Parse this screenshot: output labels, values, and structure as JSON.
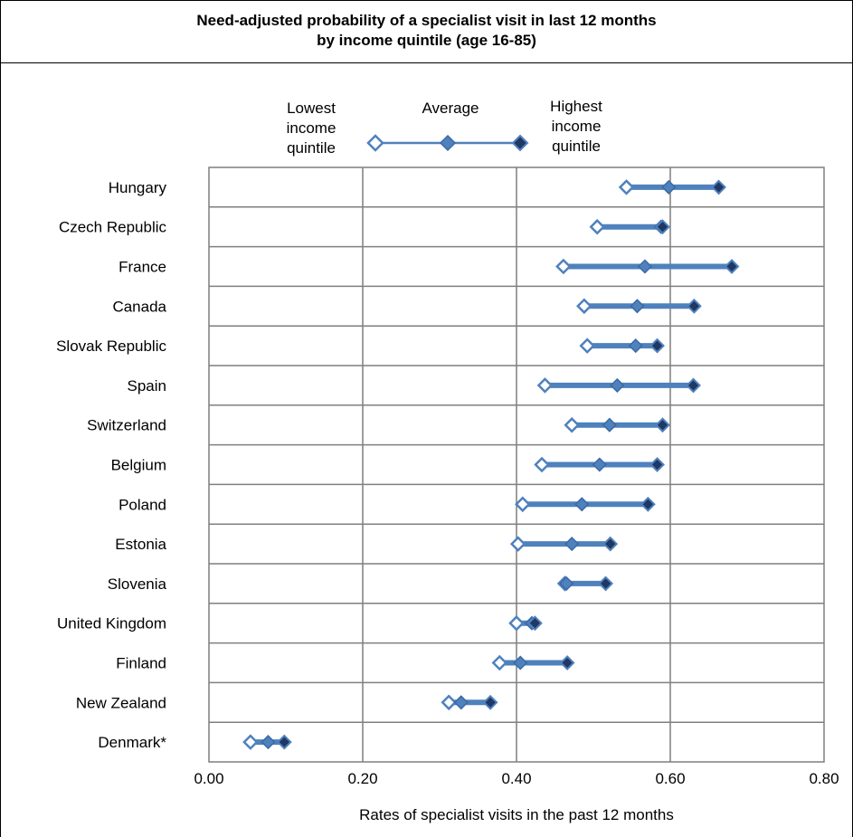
{
  "chart_data": {
    "type": "dumbbell",
    "title": "Need-adjusted probability of a specialist visit in last 12 months",
    "subtitle": "by income quintile (age 16-85)",
    "xlabel": "Rates of specialist visits in the past 12 months",
    "xlim": [
      0,
      0.8
    ],
    "xticks": [
      "0.00",
      "0.20",
      "0.40",
      "0.60",
      "0.80"
    ],
    "grid": true,
    "legend": {
      "placement": "top",
      "lowest_lines": [
        "Lowest",
        "income",
        "quintile"
      ],
      "average": "Average",
      "highest_lines": [
        "Highest",
        "income",
        "quintile"
      ]
    },
    "series_names": [
      "Lowest income quintile",
      "Average",
      "Highest income quintile"
    ],
    "categories": [
      "Hungary",
      "Czech Republic",
      "France",
      "Canada",
      "Slovak Republic",
      "Spain",
      "Switzerland",
      "Belgium",
      "Poland",
      "Estonia",
      "Slovenia",
      "United Kingdom",
      "Finland",
      "New Zealand",
      "Denmark*"
    ],
    "lowest": [
      0.543,
      0.505,
      0.461,
      0.488,
      0.492,
      0.437,
      0.472,
      0.433,
      0.408,
      0.402,
      0.463,
      0.4,
      0.378,
      0.312,
      0.054
    ],
    "average": [
      0.598,
      0.588,
      0.567,
      0.557,
      0.555,
      0.531,
      0.521,
      0.508,
      0.485,
      0.472,
      0.465,
      0.42,
      0.405,
      0.328,
      0.077
    ],
    "highest": [
      0.663,
      0.59,
      0.68,
      0.631,
      0.583,
      0.63,
      0.59,
      0.583,
      0.571,
      0.522,
      0.516,
      0.424,
      0.466,
      0.366,
      0.098
    ],
    "colors": {
      "line": "#4f81bd",
      "average": "#4f81bd",
      "highest": "#1f3864",
      "hollow": "#ffffff",
      "grid": "#7f7f7f"
    }
  }
}
